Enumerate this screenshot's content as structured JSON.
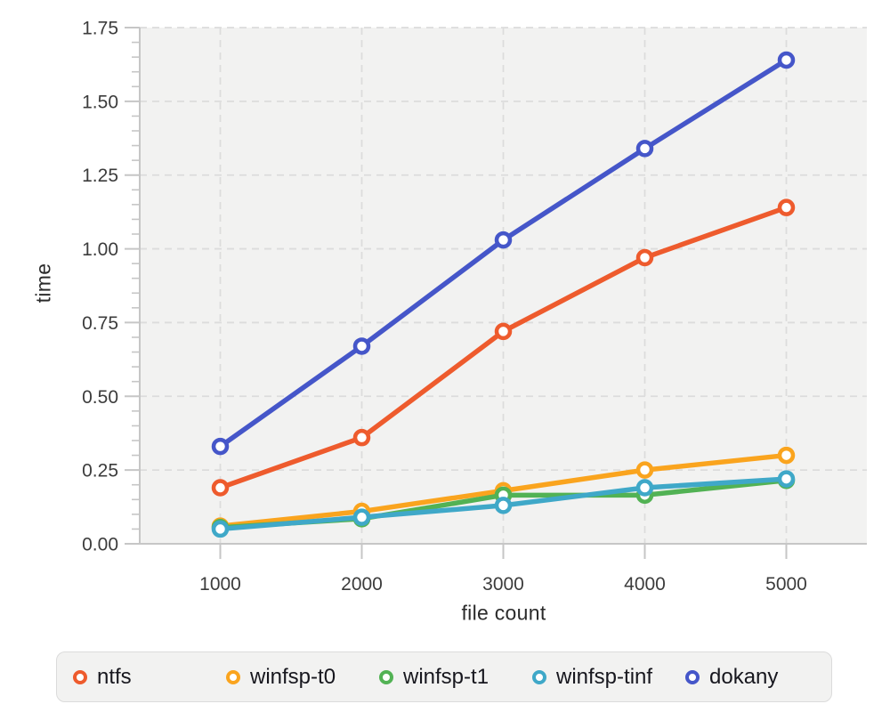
{
  "figure": {
    "y_axis_title": "time",
    "x_axis_title": "file count"
  },
  "chart_data": {
    "type": "line",
    "title": "",
    "xlabel": "file count",
    "ylabel": "time",
    "x": [
      1000,
      2000,
      3000,
      4000,
      5000
    ],
    "x_tick_labels": [
      "1000",
      "2000",
      "3000",
      "4000",
      "5000"
    ],
    "y_major_ticks": [
      0,
      0.25,
      0.5,
      0.75,
      1.0,
      1.25,
      1.5,
      1.75
    ],
    "y_tick_labels": [
      "0.00",
      "0.25",
      "0.50",
      "0.75",
      "1.00",
      "1.25",
      "1.50",
      "1.75"
    ],
    "y_minor_tick_step": 0.05,
    "ylim": [
      0,
      1.75
    ],
    "grid": true,
    "grid_style": "dashed",
    "legend_position": "bottom",
    "marker": "open-circle",
    "series": [
      {
        "name": "ntfs",
        "color": "#EE5B2D",
        "values": [
          0.19,
          0.36,
          0.72,
          0.97,
          1.14
        ]
      },
      {
        "name": "winfsp-t0",
        "color": "#FAA41E",
        "values": [
          0.06,
          0.11,
          0.18,
          0.25,
          0.3
        ]
      },
      {
        "name": "winfsp-t1",
        "color": "#52B254",
        "values": [
          0.055,
          0.085,
          0.165,
          0.165,
          0.215
        ]
      },
      {
        "name": "winfsp-tinf",
        "color": "#3FA8C8",
        "values": [
          0.05,
          0.09,
          0.13,
          0.19,
          0.22
        ]
      },
      {
        "name": "dokany",
        "color": "#4556C9",
        "values": [
          0.33,
          0.67,
          1.03,
          1.34,
          1.64
        ]
      }
    ],
    "style": {
      "plot_bg": "#F2F2F1",
      "grid_color": "#DCDCDC",
      "axis_color": "#C6C6C6",
      "tick_label_color": "#3C3C3C",
      "axis_title_color": "#2B2B2B",
      "legend_bg": "#F2F2F1",
      "legend_border": "#DBDBDB",
      "legend_text": "#17171E"
    }
  }
}
